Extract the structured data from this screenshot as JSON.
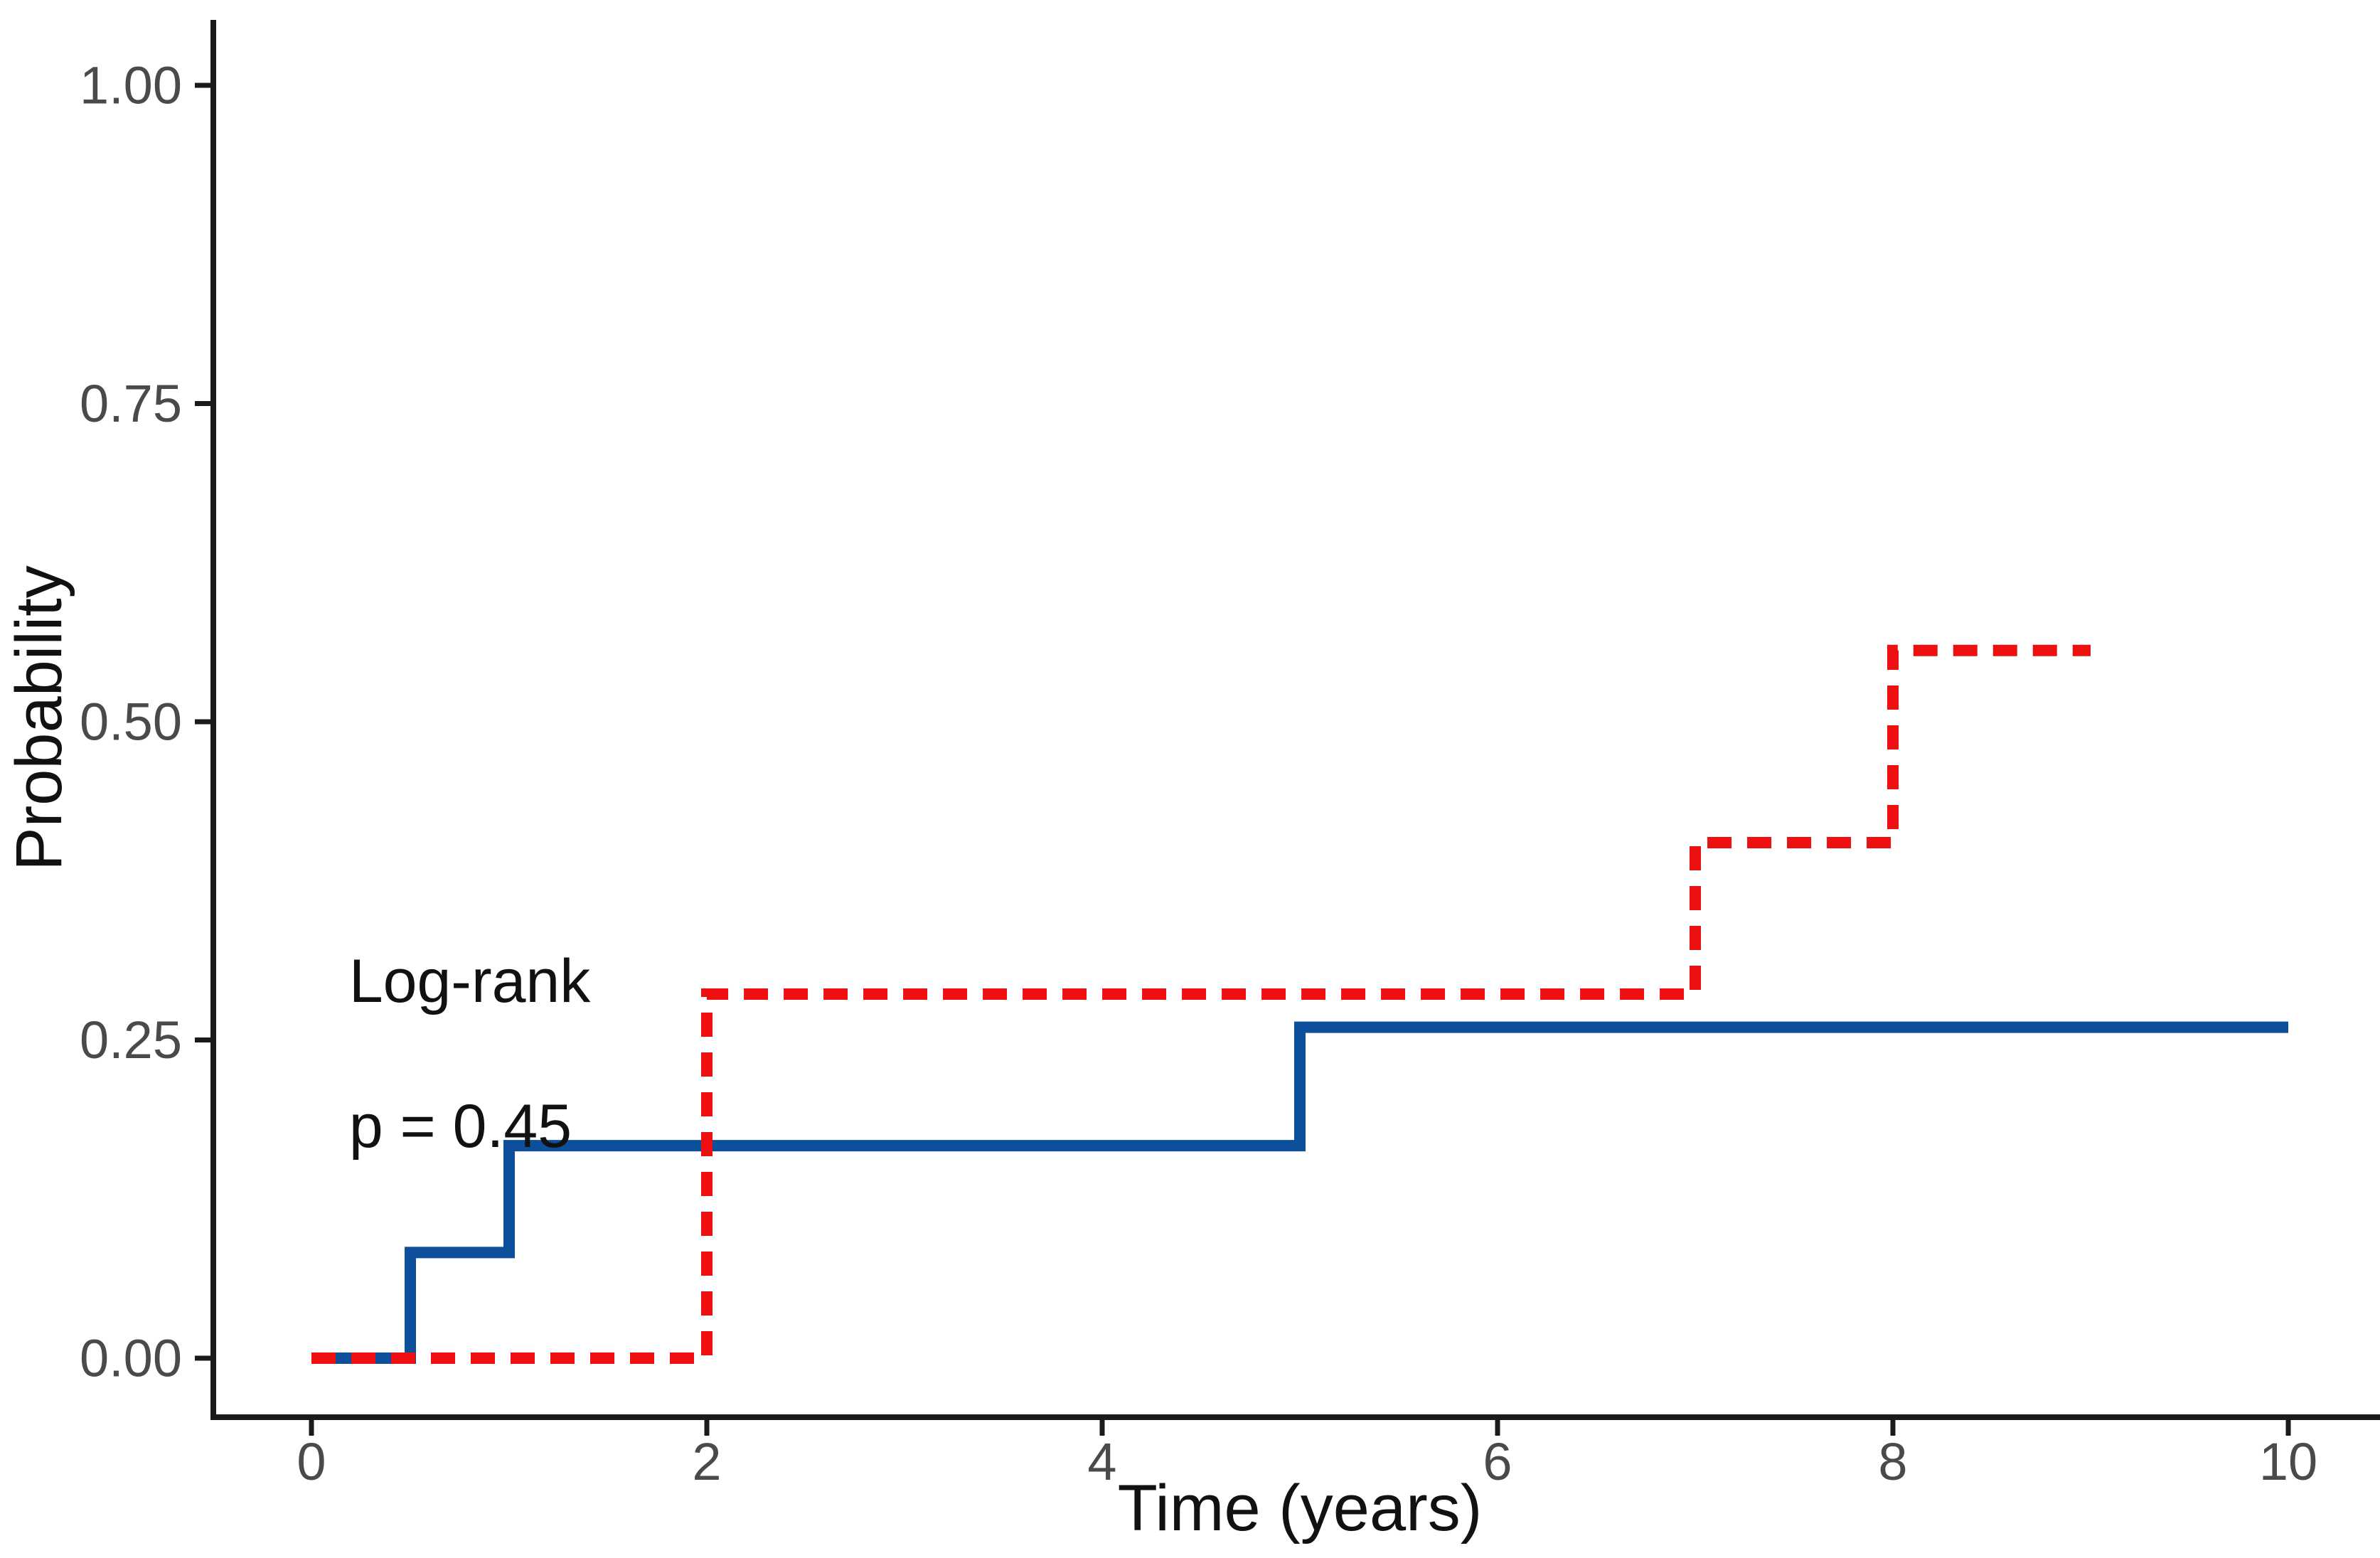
{
  "chart_data": {
    "type": "line",
    "subtype": "kaplan-meier-step-curves",
    "title": "",
    "xlabel": "Time (years)",
    "ylabel": "Probability",
    "xlim": [
      0,
      10
    ],
    "ylim": [
      0,
      1
    ],
    "grid": false,
    "legend_position": "none",
    "x_axis": {
      "tick_values": [
        0,
        2,
        4,
        6,
        8,
        10
      ],
      "tick_labels": [
        "0",
        "2",
        "4",
        "6",
        "8",
        "10"
      ]
    },
    "y_axis": {
      "tick_values": [
        0,
        0.25,
        0.5,
        0.75,
        1.0
      ],
      "tick_labels": [
        "0.00",
        "0.25",
        "0.50",
        "0.75",
        "1.00"
      ]
    },
    "series": [
      {
        "name": "group-1-blue-solid",
        "color": "#0D4F9B",
        "line_style": "solid",
        "steps": [
          {
            "t": 0,
            "p": 0
          },
          {
            "t": 0.5,
            "p": 0.083
          },
          {
            "t": 1,
            "p": 0.167
          },
          {
            "t": 5,
            "p": 0.26
          }
        ],
        "end_t": 10
      },
      {
        "name": "group-2-red-dashed",
        "color": "#EE1010",
        "line_style": "dashed",
        "steps": [
          {
            "t": 0,
            "p": 0
          },
          {
            "t": 2,
            "p": 0.286
          },
          {
            "t": 7,
            "p": 0.405
          },
          {
            "t": 8,
            "p": 0.556
          }
        ],
        "end_t": 9
      }
    ],
    "annotations": [
      {
        "text": "Log-rank",
        "x_years": 0.19,
        "y_prob": 0.296
      },
      {
        "text": "p = 0.45",
        "x_years": 0.19,
        "y_prob": 0.182
      }
    ]
  }
}
